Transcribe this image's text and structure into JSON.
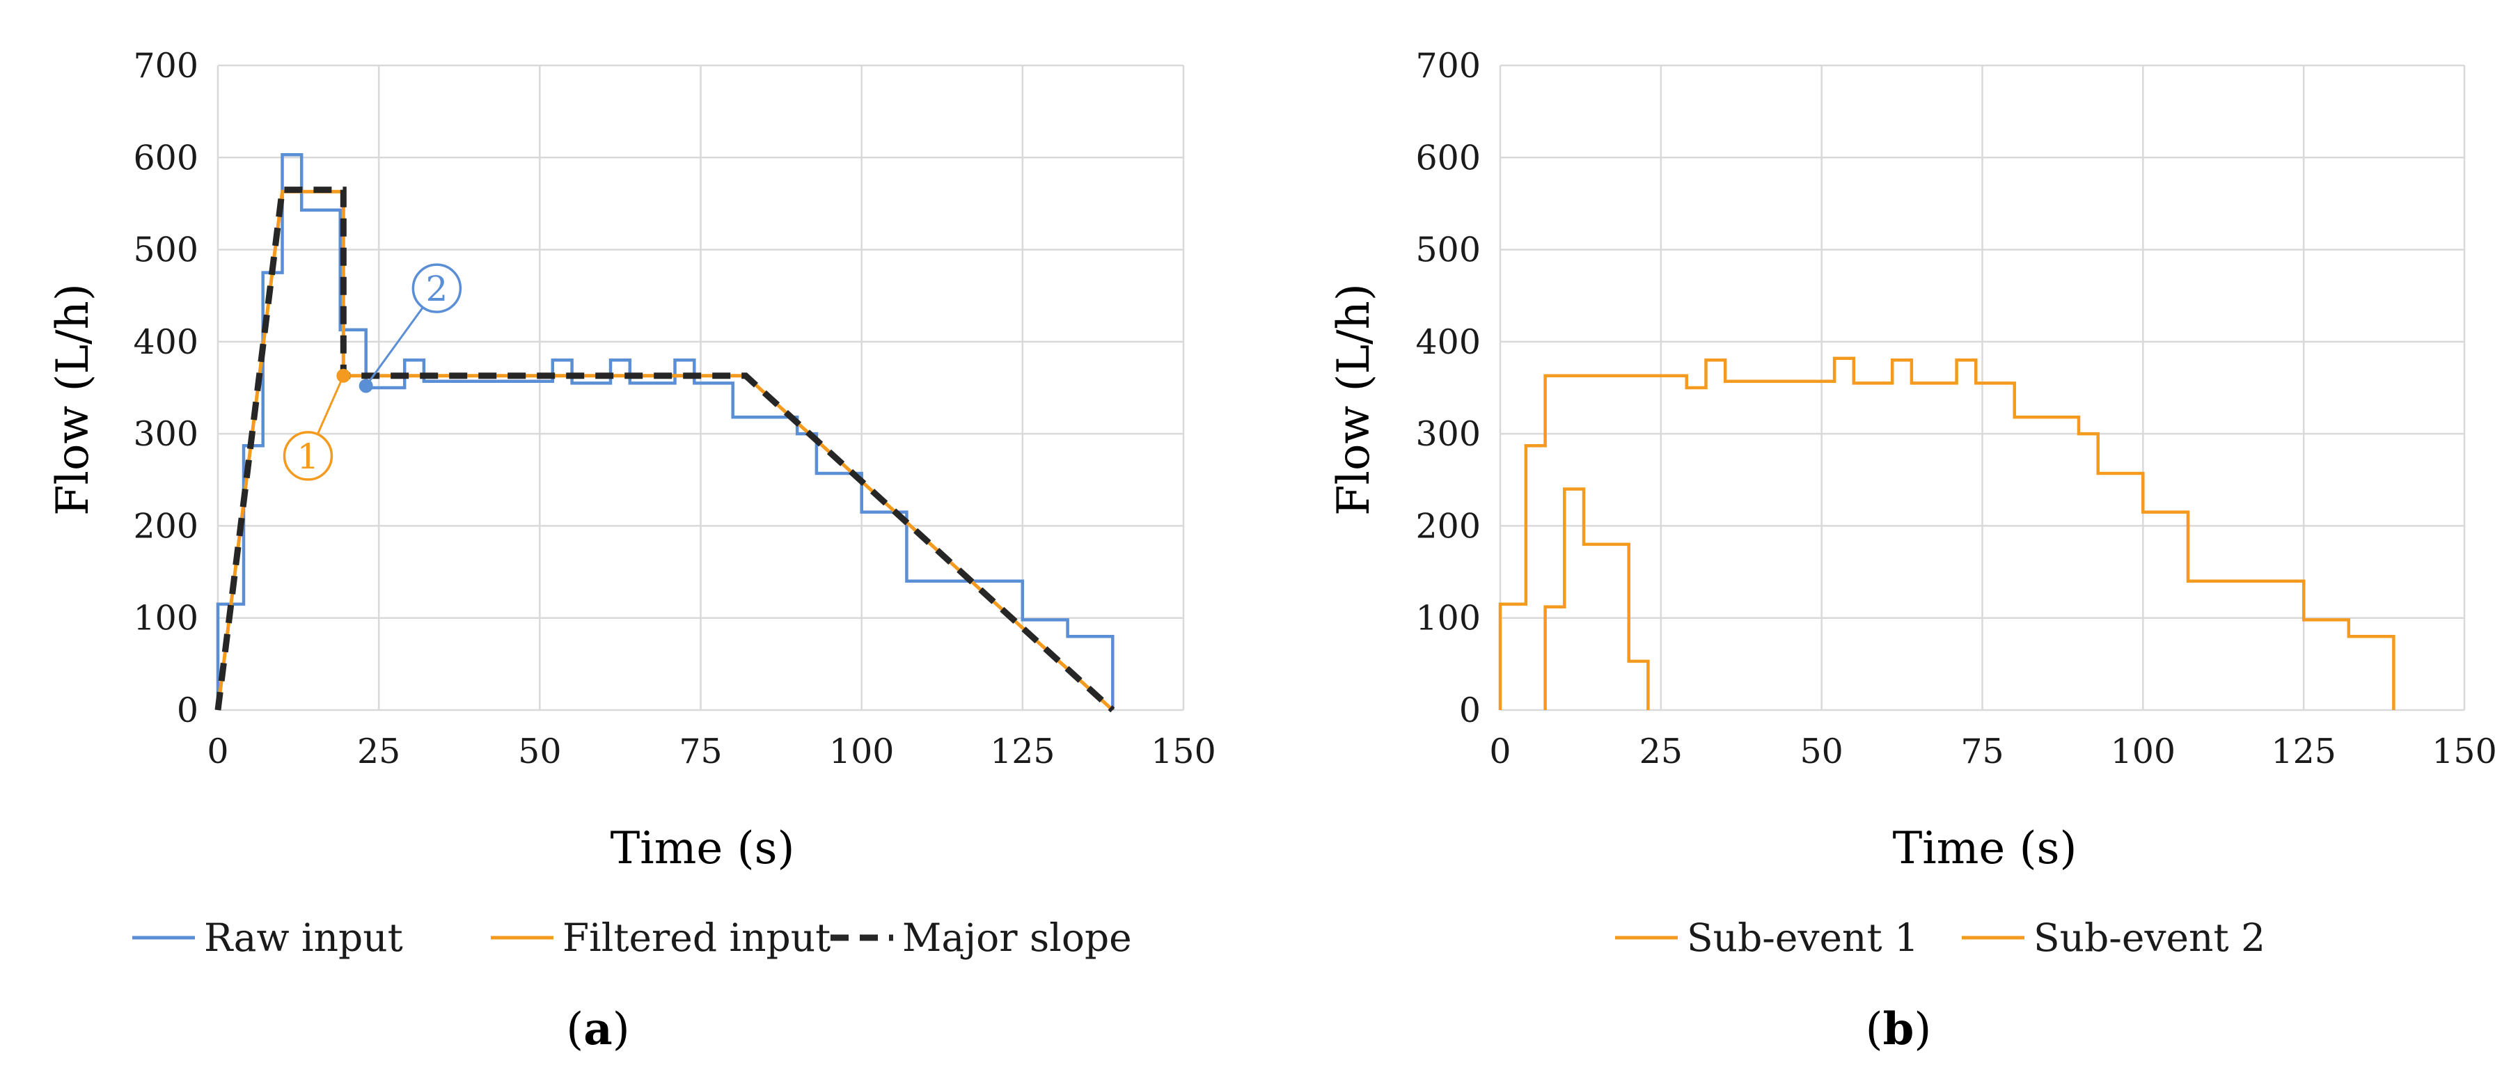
{
  "chart_data": [
    {
      "panel_label": "a",
      "type": "line",
      "xlabel": "Time (s)",
      "ylabel": "Flow (L/h)",
      "xlim": [
        0,
        150
      ],
      "ylim": [
        0,
        700
      ],
      "xticks": [
        0,
        25,
        50,
        75,
        100,
        125,
        150
      ],
      "yticks": [
        0,
        100,
        200,
        300,
        400,
        500,
        600,
        700
      ],
      "grid": true,
      "legend_position": "bottom",
      "series": [
        {
          "name": "Raw input",
          "color": "#5B8FD5",
          "style": "step",
          "points": [
            [
              0,
              0
            ],
            [
              0,
              115
            ],
            [
              4,
              115
            ],
            [
              4,
              287
            ],
            [
              7,
              287
            ],
            [
              7,
              475
            ],
            [
              10,
              475
            ],
            [
              10,
              603
            ],
            [
              13,
              603
            ],
            [
              13,
              543
            ],
            [
              19,
              543
            ],
            [
              19,
              413
            ],
            [
              23,
              413
            ],
            [
              23,
              350
            ],
            [
              29,
              350
            ],
            [
              29,
              380
            ],
            [
              32,
              380
            ],
            [
              32,
              357
            ],
            [
              52,
              357
            ],
            [
              52,
              380
            ],
            [
              55,
              380
            ],
            [
              55,
              355
            ],
            [
              61,
              355
            ],
            [
              61,
              380
            ],
            [
              64,
              380
            ],
            [
              64,
              355
            ],
            [
              71,
              355
            ],
            [
              71,
              380
            ],
            [
              74,
              380
            ],
            [
              74,
              355
            ],
            [
              80,
              355
            ],
            [
              80,
              318
            ],
            [
              90,
              318
            ],
            [
              90,
              300
            ],
            [
              93,
              300
            ],
            [
              93,
              257
            ],
            [
              100,
              257
            ],
            [
              100,
              215
            ],
            [
              107,
              215
            ],
            [
              107,
              140
            ],
            [
              125,
              140
            ],
            [
              125,
              98
            ],
            [
              132,
              98
            ],
            [
              132,
              80
            ],
            [
              139,
              80
            ],
            [
              139,
              0
            ]
          ]
        },
        {
          "name": "Filtered input",
          "color": "#F39A1F",
          "style": "line",
          "points": [
            [
              0,
              0
            ],
            [
              10,
              563
            ],
            [
              19.5,
              563
            ],
            [
              19.5,
              363
            ],
            [
              82,
              363
            ],
            [
              139,
              0
            ]
          ]
        },
        {
          "name": "Major slope",
          "color": "#262626",
          "style": "dashed",
          "points": [
            [
              0,
              0
            ],
            [
              10,
              565
            ],
            [
              19.5,
              565
            ],
            [
              19.5,
              363
            ],
            [
              82,
              363
            ],
            [
              139,
              0
            ]
          ]
        }
      ],
      "annotations": [
        {
          "label": "1",
          "color": "#F39A1F",
          "point": [
            19.5,
            363
          ],
          "circle_at": [
            14,
            276
          ]
        },
        {
          "label": "2",
          "color": "#5B8FD5",
          "point": [
            23,
            352
          ],
          "circle_at": [
            34,
            458
          ]
        }
      ]
    },
    {
      "panel_label": "b",
      "type": "line",
      "xlabel": "Time (s)",
      "ylabel": "Flow (L/h)",
      "xlim": [
        0,
        150
      ],
      "ylim": [
        0,
        700
      ],
      "xticks": [
        0,
        25,
        50,
        75,
        100,
        125,
        150
      ],
      "yticks": [
        0,
        100,
        200,
        300,
        400,
        500,
        600,
        700
      ],
      "grid": true,
      "legend_position": "bottom",
      "series": [
        {
          "name": "Sub-event 1",
          "color": "#F39A1F",
          "style": "step",
          "points": [
            [
              0,
              0
            ],
            [
              0,
              115
            ],
            [
              4,
              115
            ],
            [
              4,
              287
            ],
            [
              7,
              287
            ],
            [
              7,
              363
            ],
            [
              29,
              363
            ],
            [
              29,
              350
            ],
            [
              32,
              350
            ],
            [
              32,
              380
            ],
            [
              35,
              380
            ],
            [
              35,
              357
            ],
            [
              52,
              357
            ],
            [
              52,
              382
            ],
            [
              55,
              382
            ],
            [
              55,
              355
            ],
            [
              61,
              355
            ],
            [
              61,
              380
            ],
            [
              64,
              380
            ],
            [
              64,
              355
            ],
            [
              71,
              355
            ],
            [
              71,
              380
            ],
            [
              74,
              380
            ],
            [
              74,
              355
            ],
            [
              80,
              355
            ],
            [
              80,
              318
            ],
            [
              90,
              318
            ],
            [
              90,
              300
            ],
            [
              93,
              300
            ],
            [
              93,
              257
            ],
            [
              100,
              257
            ],
            [
              100,
              215
            ],
            [
              107,
              215
            ],
            [
              107,
              140
            ],
            [
              125,
              140
            ],
            [
              125,
              98
            ],
            [
              132,
              98
            ],
            [
              132,
              80
            ],
            [
              139,
              80
            ],
            [
              139,
              0
            ]
          ]
        },
        {
          "name": "Sub-event 2",
          "color": "#F39A1F",
          "style": "step",
          "points": [
            [
              7,
              0
            ],
            [
              7,
              112
            ],
            [
              10,
              112
            ],
            [
              10,
              240
            ],
            [
              13,
              240
            ],
            [
              13,
              180
            ],
            [
              20,
              180
            ],
            [
              20,
              53
            ],
            [
              23,
              53
            ],
            [
              23,
              0
            ]
          ]
        }
      ]
    }
  ]
}
